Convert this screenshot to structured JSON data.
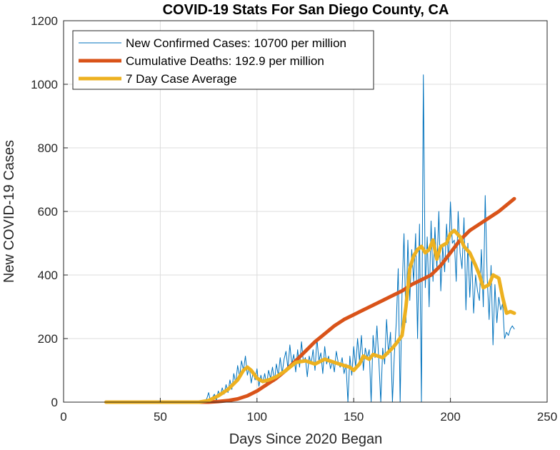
{
  "chart_data": {
    "type": "line",
    "title": "COVID-19 Stats For San Diego County, CA",
    "xlabel": "Days Since 2020 Began",
    "ylabel": "New COVID-19 Cases",
    "xlim": [
      0,
      250
    ],
    "ylim": [
      0,
      1200
    ],
    "xticks": [
      0,
      50,
      100,
      150,
      200,
      250
    ],
    "yticks": [
      0,
      200,
      400,
      600,
      800,
      1000,
      1200
    ],
    "grid": true,
    "legend_position": "top-left",
    "series": [
      {
        "name": "New Confirmed Cases: 10700 per million",
        "color": "#0072BD",
        "width": 1,
        "x": [
          22,
          30,
          40,
          50,
          60,
          70,
          72,
          73,
          74,
          75,
          76,
          77,
          78,
          79,
          80,
          81,
          82,
          83,
          84,
          85,
          86,
          87,
          88,
          89,
          90,
          91,
          92,
          93,
          94,
          95,
          96,
          97,
          98,
          99,
          100,
          101,
          102,
          103,
          104,
          105,
          106,
          107,
          108,
          109,
          110,
          111,
          112,
          113,
          114,
          115,
          116,
          117,
          118,
          119,
          120,
          121,
          122,
          123,
          124,
          125,
          126,
          127,
          128,
          129,
          130,
          131,
          132,
          133,
          134,
          135,
          136,
          137,
          138,
          139,
          140,
          141,
          142,
          143,
          144,
          145,
          146,
          147,
          148,
          149,
          150,
          151,
          152,
          153,
          154,
          155,
          156,
          157,
          158,
          159,
          160,
          161,
          162,
          163,
          164,
          165,
          166,
          167,
          168,
          169,
          170,
          171,
          172,
          173,
          174,
          175,
          176,
          177,
          178,
          179,
          180,
          181,
          182,
          183,
          184,
          185,
          186,
          187,
          188,
          189,
          190,
          191,
          192,
          193,
          194,
          195,
          196,
          197,
          198,
          199,
          200,
          201,
          202,
          203,
          204,
          205,
          206,
          207,
          208,
          209,
          210,
          211,
          212,
          213,
          214,
          215,
          216,
          217,
          218,
          219,
          220,
          221,
          222,
          223,
          224,
          225,
          226,
          227,
          228,
          229,
          230,
          231,
          232,
          233
        ],
        "y": [
          0,
          0,
          0,
          0,
          0,
          0,
          0,
          5,
          10,
          30,
          0,
          15,
          25,
          5,
          35,
          20,
          45,
          25,
          55,
          30,
          70,
          40,
          90,
          60,
          115,
          80,
          130,
          100,
          145,
          85,
          110,
          60,
          95,
          70,
          105,
          50,
          85,
          60,
          90,
          55,
          100,
          75,
          110,
          65,
          120,
          85,
          140,
          90,
          135,
          160,
          105,
          180,
          120,
          150,
          95,
          165,
          110,
          190,
          125,
          140,
          80,
          145,
          120,
          165,
          100,
          200,
          130,
          155,
          90,
          175,
          120,
          145,
          105,
          130,
          95,
          160,
          125,
          110,
          140,
          90,
          120,
          0,
          145,
          85,
          175,
          110,
          200,
          130,
          210,
          100,
          170,
          140,
          165,
          0,
          210,
          140,
          240,
          130,
          0,
          170,
          120,
          260,
          150,
          220,
          0,
          150,
          250,
          420,
          0,
          350,
          530,
          250,
          510,
          320,
          480,
          380,
          530,
          200,
          560,
          0,
          1030,
          360,
          520,
          300,
          570,
          380,
          550,
          420,
          600,
          350,
          490,
          410,
          560,
          440,
          630,
          500,
          510,
          380,
          600,
          470,
          420,
          580,
          290,
          500,
          330,
          460,
          280,
          400,
          350,
          320,
          480,
          300,
          650,
          390,
          260,
          430,
          180,
          370,
          250,
          330,
          290,
          310,
          200,
          220,
          210,
          230,
          240,
          230
        ]
      },
      {
        "name": "Cumulative Deaths: 192.9 per million",
        "color": "#D95319",
        "width": 5,
        "x": [
          22,
          40,
          60,
          75,
          80,
          85,
          90,
          95,
          100,
          105,
          110,
          115,
          120,
          125,
          130,
          135,
          140,
          145,
          150,
          155,
          160,
          165,
          170,
          175,
          180,
          185,
          190,
          195,
          200,
          205,
          210,
          215,
          220,
          225,
          230,
          233
        ],
        "y": [
          0,
          0,
          0,
          0,
          2,
          5,
          10,
          20,
          35,
          55,
          75,
          100,
          130,
          160,
          190,
          215,
          240,
          260,
          275,
          290,
          305,
          320,
          335,
          350,
          370,
          385,
          400,
          430,
          470,
          510,
          540,
          560,
          580,
          600,
          625,
          640
        ]
      },
      {
        "name": "7 Day Case Average",
        "color": "#EDB120",
        "width": 5,
        "x": [
          22,
          40,
          60,
          70,
          75,
          80,
          85,
          90,
          93,
          95,
          97,
          100,
          103,
          106,
          110,
          115,
          120,
          125,
          130,
          135,
          140,
          145,
          148,
          150,
          153,
          155,
          158,
          160,
          165,
          170,
          172,
          175,
          177,
          179,
          181,
          183,
          185,
          187,
          189,
          191,
          193,
          195,
          198,
          200,
          202,
          205,
          207,
          210,
          213,
          215,
          217,
          220,
          222,
          225,
          227,
          229,
          231,
          233
        ],
        "y": [
          0,
          0,
          0,
          0,
          5,
          20,
          40,
          70,
          100,
          110,
          100,
          75,
          65,
          70,
          80,
          100,
          125,
          130,
          120,
          135,
          125,
          115,
          110,
          100,
          120,
          145,
          135,
          150,
          140,
          170,
          185,
          210,
          300,
          420,
          460,
          480,
          490,
          470,
          480,
          510,
          450,
          490,
          500,
          530,
          540,
          520,
          490,
          470,
          430,
          400,
          360,
          370,
          400,
          390,
          330,
          280,
          285,
          280
        ]
      }
    ]
  }
}
